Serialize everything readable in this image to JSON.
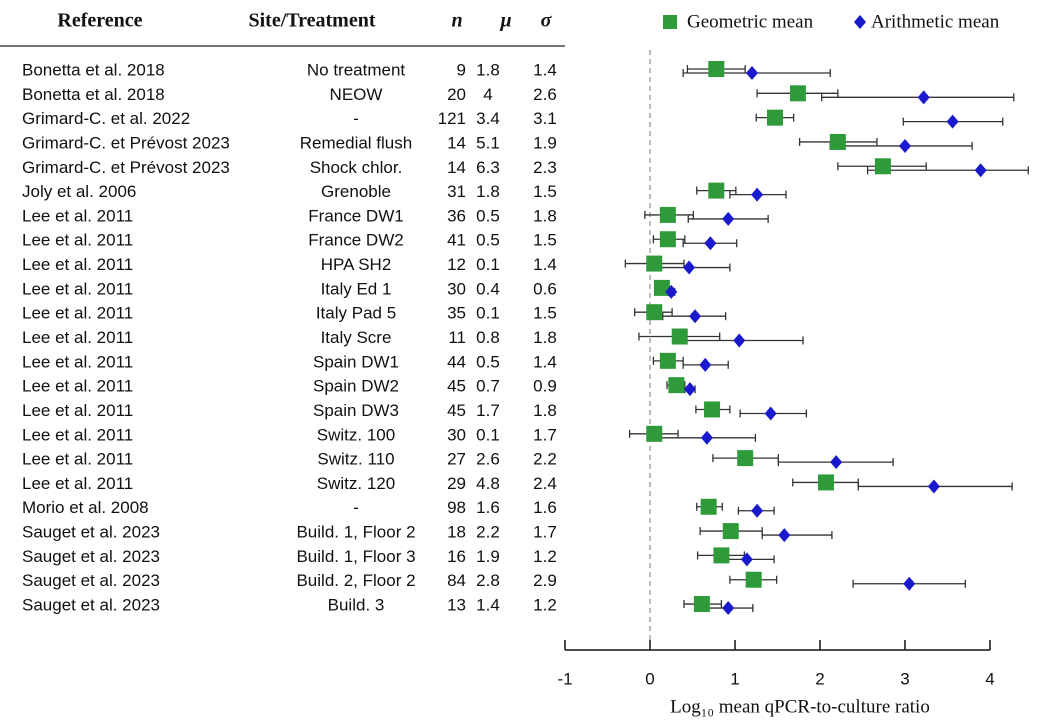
{
  "chart_data": {
    "type": "forest",
    "columns": [
      "Reference",
      "Site/Treatment",
      "n",
      "μ",
      "σ"
    ],
    "rows": [
      {
        "reference": "Bonetta et al. 2018",
        "site": "No treatment",
        "n": 9,
        "mu": 1.8,
        "sigma": 1.4
      },
      {
        "reference": "Bonetta et al. 2018",
        "site": "NEOW",
        "n": 20,
        "mu": 4,
        "sigma": 2.6
      },
      {
        "reference": "Grimard-C. et al. 2022",
        "site": "-",
        "n": 121,
        "mu": 3.4,
        "sigma": 3.1
      },
      {
        "reference": "Grimard-C. et Prévost 2023",
        "site": "Remedial flush",
        "n": 14,
        "mu": 5.1,
        "sigma": 1.9
      },
      {
        "reference": "Grimard-C. et Prévost 2023",
        "site": "Shock chlor.",
        "n": 14,
        "mu": 6.3,
        "sigma": 2.3
      },
      {
        "reference": "Joly et al. 2006",
        "site": "Grenoble",
        "n": 31,
        "mu": 1.8,
        "sigma": 1.5
      },
      {
        "reference": "Lee et al. 2011",
        "site": "France DW1",
        "n": 36,
        "mu": 0.5,
        "sigma": 1.8
      },
      {
        "reference": "Lee et al. 2011",
        "site": "France DW2",
        "n": 41,
        "mu": 0.5,
        "sigma": 1.5
      },
      {
        "reference": "Lee et al. 2011",
        "site": "HPA SH2",
        "n": 12,
        "mu": 0.1,
        "sigma": 1.4
      },
      {
        "reference": "Lee et al. 2011",
        "site": "Italy Ed 1",
        "n": 30,
        "mu": 0.4,
        "sigma": 0.6
      },
      {
        "reference": "Lee et al. 2011",
        "site": "Italy Pad 5",
        "n": 35,
        "mu": 0.1,
        "sigma": 1.5
      },
      {
        "reference": "Lee et al. 2011",
        "site": "Italy Scre",
        "n": 11,
        "mu": 0.8,
        "sigma": 1.8
      },
      {
        "reference": "Lee et al. 2011",
        "site": "Spain DW1",
        "n": 44,
        "mu": 0.5,
        "sigma": 1.4
      },
      {
        "reference": "Lee et al. 2011",
        "site": "Spain DW2",
        "n": 45,
        "mu": 0.7,
        "sigma": 0.9
      },
      {
        "reference": "Lee et al. 2011",
        "site": "Spain DW3",
        "n": 45,
        "mu": 1.7,
        "sigma": 1.8
      },
      {
        "reference": "Lee et al. 2011",
        "site": "Switz. 100",
        "n": 30,
        "mu": 0.1,
        "sigma": 1.7
      },
      {
        "reference": "Lee et al. 2011",
        "site": "Switz. 110",
        "n": 27,
        "mu": 2.6,
        "sigma": 2.2
      },
      {
        "reference": "Lee et al. 2011",
        "site": "Switz. 120",
        "n": 29,
        "mu": 4.8,
        "sigma": 2.4
      },
      {
        "reference": "Morio et al. 2008",
        "site": "-",
        "n": 98,
        "mu": 1.6,
        "sigma": 1.6
      },
      {
        "reference": "Sauget et al. 2023",
        "site": "Build. 1, Floor 2",
        "n": 18,
        "mu": 2.2,
        "sigma": 1.7
      },
      {
        "reference": "Sauget et al. 2023",
        "site": "Build. 1, Floor 3",
        "n": 16,
        "mu": 1.9,
        "sigma": 1.2
      },
      {
        "reference": "Sauget et al. 2023",
        "site": "Build. 2, Floor 2",
        "n": 84,
        "mu": 2.8,
        "sigma": 2.9
      },
      {
        "reference": "Sauget et al. 2023",
        "site": "Build. 3",
        "n": 13,
        "mu": 1.4,
        "sigma": 1.2
      }
    ],
    "series": [
      {
        "name": "Geometric mean",
        "color": "#2e9a3a",
        "marker": "square",
        "values": [
          0.78,
          1.74,
          1.47,
          2.21,
          2.74,
          0.78,
          0.21,
          0.21,
          0.05,
          0.14,
          0.05,
          0.35,
          0.21,
          0.31,
          0.73,
          0.05,
          1.12,
          2.07,
          0.69,
          0.95,
          0.84,
          1.22,
          0.61
        ],
        "low": [
          0.44,
          1.26,
          1.25,
          1.76,
          2.21,
          0.55,
          -0.06,
          0.04,
          -0.29,
          0.08,
          -0.18,
          -0.13,
          0.04,
          0.2,
          0.54,
          -0.24,
          0.74,
          1.68,
          0.55,
          0.59,
          0.56,
          0.94,
          0.4
        ],
        "high": [
          1.12,
          2.21,
          1.69,
          2.67,
          3.25,
          1.01,
          0.51,
          0.41,
          0.4,
          0.21,
          0.26,
          0.82,
          0.39,
          0.41,
          0.94,
          0.33,
          1.51,
          2.45,
          0.85,
          1.32,
          1.11,
          1.49,
          0.84
        ]
      },
      {
        "name": "Arithmetic mean",
        "color": "#1a1acc",
        "marker": "diamond",
        "values": [
          1.2,
          3.22,
          3.56,
          3.0,
          3.89,
          1.26,
          0.92,
          0.71,
          0.46,
          0.25,
          0.53,
          1.05,
          0.65,
          0.47,
          1.42,
          0.67,
          2.19,
          3.34,
          1.26,
          1.58,
          1.14,
          3.05,
          0.92
        ],
        "low": [
          0.39,
          2.02,
          2.98,
          2.12,
          2.56,
          0.94,
          0.45,
          0.39,
          0.01,
          0.21,
          0.15,
          0.35,
          0.39,
          0.41,
          1.06,
          0.13,
          1.51,
          2.45,
          1.04,
          1.32,
          0.85,
          2.39,
          0.65
        ],
        "high": [
          2.12,
          4.28,
          4.15,
          3.79,
          4.45,
          1.6,
          1.39,
          1.02,
          0.94,
          0.29,
          0.89,
          1.8,
          0.92,
          0.53,
          1.84,
          1.24,
          2.86,
          4.26,
          1.46,
          2.14,
          1.46,
          3.71,
          1.21
        ]
      }
    ],
    "xlim": [
      -1,
      4
    ],
    "xticks": [
      -1,
      0,
      1,
      2,
      3,
      4
    ],
    "xlabel": "Log₁₀ mean qPCR-to-culture ratio",
    "reference_line": 0
  }
}
